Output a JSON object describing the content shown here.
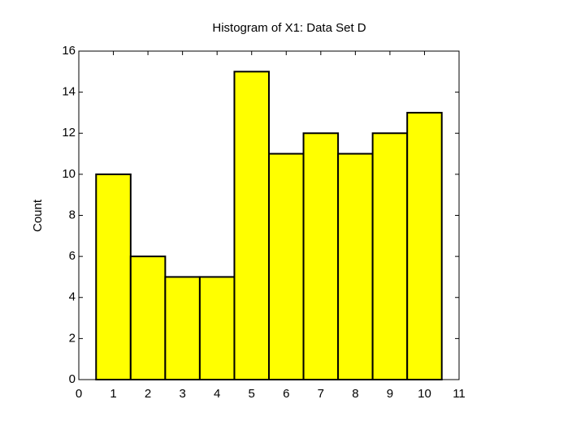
{
  "chart_data": {
    "type": "histogram",
    "title": "Histogram of X1: Data Set D",
    "ylabel": "Count",
    "bins": [
      0.5,
      1.5,
      2.5,
      3.5,
      4.5,
      5.5,
      6.5,
      7.5,
      8.5,
      9.5,
      10.5
    ],
    "values": [
      10,
      6,
      5,
      5,
      15,
      11,
      12,
      11,
      12,
      13
    ],
    "color": "#ffff00",
    "xlim": [
      0,
      11
    ],
    "xticks": [
      0,
      1,
      2,
      3,
      4,
      5,
      6,
      7,
      8,
      9,
      10,
      11
    ],
    "ylim": [
      0,
      16
    ],
    "yticks": [
      0,
      2,
      4,
      6,
      8,
      10,
      12,
      14,
      16
    ],
    "grid": false
  }
}
